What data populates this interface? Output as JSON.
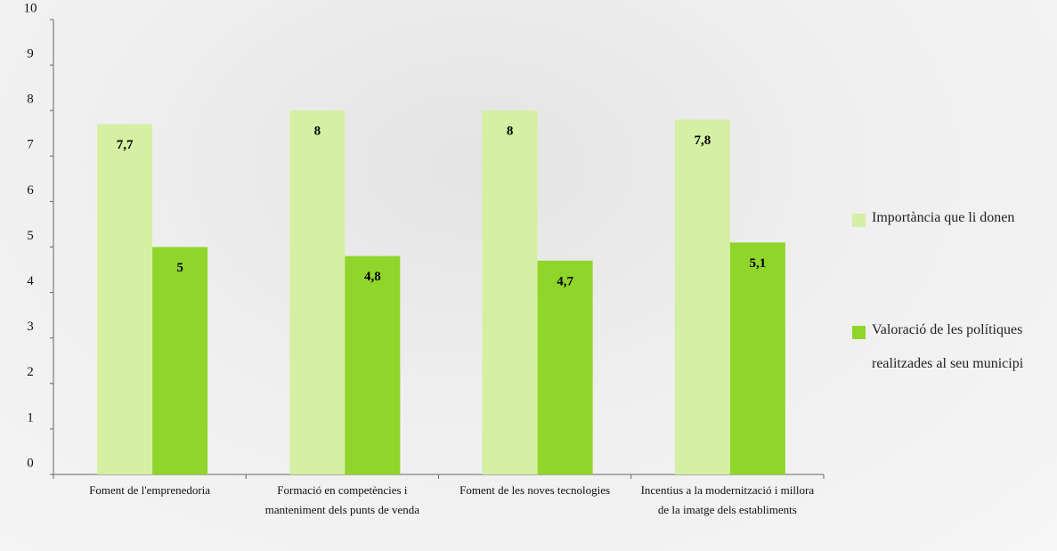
{
  "chart_data": {
    "type": "bar",
    "categories": [
      "Foment de l'emprenedoria",
      "Formació en competències i manteniment dels punts de venda",
      "Foment de les noves tecnologies",
      "Incentius a la modernització i millora de la imatge dels establiments"
    ],
    "series": [
      {
        "name": "Importància que li donen",
        "color": "#d5efa3",
        "values": [
          7.7,
          8,
          8,
          7.8
        ],
        "value_labels": [
          "7,7",
          "8",
          "8",
          "7,8"
        ]
      },
      {
        "name": "Valoració de les polítiques realitzades al seu municipi",
        "color": "#8fd52a",
        "values": [
          5,
          4.8,
          4.7,
          5.1
        ],
        "value_labels": [
          "5",
          "4,8",
          "4,7",
          "5,1"
        ]
      }
    ],
    "ylim": [
      0,
      10
    ],
    "yticks": [
      0,
      1,
      2,
      3,
      4,
      5,
      6,
      7,
      8,
      9,
      10
    ],
    "legend": "right"
  }
}
